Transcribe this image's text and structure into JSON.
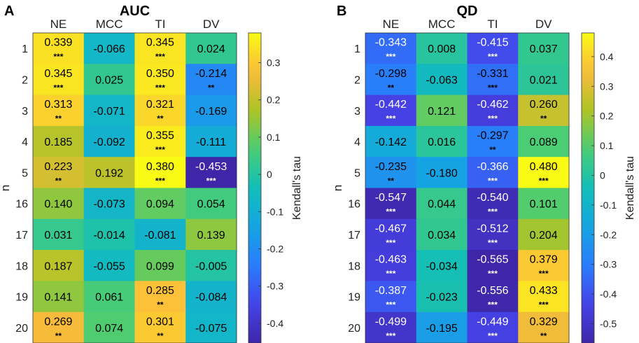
{
  "chart_data": [
    {
      "type": "heatmap",
      "panel_label": "A",
      "title": "AUC",
      "columns": [
        "NE",
        "MCC",
        "TI",
        "DV"
      ],
      "rows": [
        "1",
        "2",
        "3",
        "4",
        "5",
        "16",
        "17",
        "18",
        "19",
        "20"
      ],
      "ylabel": "n",
      "values": [
        [
          0.339,
          -0.066,
          0.345,
          0.024
        ],
        [
          0.345,
          0.025,
          0.35,
          -0.214
        ],
        [
          0.313,
          -0.071,
          0.321,
          -0.169
        ],
        [
          0.185,
          -0.092,
          0.355,
          -0.111
        ],
        [
          0.223,
          0.192,
          0.38,
          -0.453
        ],
        [
          0.14,
          -0.073,
          0.094,
          0.054
        ],
        [
          0.031,
          -0.014,
          -0.081,
          0.139
        ],
        [
          0.187,
          -0.055,
          0.099,
          -0.005
        ],
        [
          0.141,
          0.061,
          0.285,
          -0.084
        ],
        [
          0.269,
          0.074,
          0.301,
          -0.075
        ]
      ],
      "labels": [
        [
          "0.339",
          "-0.066",
          "0.345",
          "0.024"
        ],
        [
          "0.345",
          "0.025",
          "0.350",
          "-0.214"
        ],
        [
          "0.313",
          "-0.071",
          "0.321",
          "-0.169"
        ],
        [
          "0.185",
          "-0.092",
          "0.355",
          "-0.111"
        ],
        [
          "0.223",
          "0.192",
          "0.380",
          "-0.453"
        ],
        [
          "0.140",
          "-0.073",
          "0.094",
          "0.054"
        ],
        [
          "0.031",
          "-0.014",
          "-0.081",
          "0.139"
        ],
        [
          "0.187",
          "-0.055",
          "0.099",
          "-0.005"
        ],
        [
          "0.141",
          "0.061",
          "0.285",
          "-0.084"
        ],
        [
          "0.269",
          "0.074",
          "0.301",
          "-0.075"
        ]
      ],
      "significance": [
        [
          "***",
          "",
          "***",
          ""
        ],
        [
          "***",
          "",
          "***",
          "**"
        ],
        [
          "**",
          "",
          "**",
          ""
        ],
        [
          "",
          "",
          "***",
          ""
        ],
        [
          "**",
          "",
          "***",
          "***"
        ],
        [
          "",
          "",
          "",
          ""
        ],
        [
          "",
          "",
          "",
          ""
        ],
        [
          "",
          "",
          "",
          ""
        ],
        [
          "",
          "",
          "**",
          ""
        ],
        [
          "**",
          "",
          "**",
          ""
        ]
      ],
      "colorbar": {
        "label": "Kendall's tau",
        "range": [
          -0.453,
          0.38
        ],
        "ticks": [
          0.3,
          0.2,
          0.1,
          0,
          -0.1,
          -0.2,
          -0.3,
          -0.4
        ],
        "tick_labels": [
          "0.3",
          "0.2",
          "0.1",
          "0",
          "-0.1",
          "-0.2",
          "-0.3",
          "-0.4"
        ]
      }
    },
    {
      "type": "heatmap",
      "panel_label": "B",
      "title": "QD",
      "columns": [
        "NE",
        "MCC",
        "TI",
        "DV"
      ],
      "rows": [
        "1",
        "2",
        "3",
        "4",
        "5",
        "16",
        "17",
        "18",
        "19",
        "20"
      ],
      "ylabel": "n",
      "values": [
        [
          -0.343,
          0.008,
          -0.415,
          0.037
        ],
        [
          -0.298,
          -0.063,
          -0.331,
          0.021
        ],
        [
          -0.442,
          0.121,
          -0.462,
          0.26
        ],
        [
          -0.142,
          0.016,
          -0.297,
          0.089
        ],
        [
          -0.235,
          -0.18,
          -0.366,
          0.48
        ],
        [
          -0.547,
          0.044,
          -0.54,
          0.101
        ],
        [
          -0.467,
          0.034,
          -0.512,
          0.204
        ],
        [
          -0.463,
          -0.034,
          -0.565,
          0.379
        ],
        [
          -0.387,
          -0.023,
          -0.556,
          0.433
        ],
        [
          -0.499,
          -0.195,
          -0.449,
          0.329
        ]
      ],
      "labels": [
        [
          "-0.343",
          "0.008",
          "-0.415",
          "0.037"
        ],
        [
          "-0.298",
          "-0.063",
          "-0.331",
          "0.021"
        ],
        [
          "-0.442",
          "0.121",
          "-0.462",
          "0.260"
        ],
        [
          "-0.142",
          "0.016",
          "-0.297",
          "0.089"
        ],
        [
          "-0.235",
          "-0.180",
          "-0.366",
          "0.480"
        ],
        [
          "-0.547",
          "0.044",
          "-0.540",
          "0.101"
        ],
        [
          "-0.467",
          "0.034",
          "-0.512",
          "0.204"
        ],
        [
          "-0.463",
          "-0.034",
          "-0.565",
          "0.379"
        ],
        [
          "-0.387",
          "-0.023",
          "-0.556",
          "0.433"
        ],
        [
          "-0.499",
          "-0.195",
          "-0.449",
          "0.329"
        ]
      ],
      "significance": [
        [
          "***",
          "",
          "***",
          ""
        ],
        [
          "**",
          "",
          "***",
          ""
        ],
        [
          "***",
          "",
          "***",
          "**"
        ],
        [
          "",
          "",
          "**",
          ""
        ],
        [
          "**",
          "",
          "***",
          "***"
        ],
        [
          "***",
          "",
          "***",
          ""
        ],
        [
          "***",
          "",
          "***",
          ""
        ],
        [
          "***",
          "",
          "***",
          "***"
        ],
        [
          "***",
          "",
          "***",
          "***"
        ],
        [
          "***",
          "",
          "***",
          "**"
        ]
      ],
      "colorbar": {
        "label": "Kendall's tau",
        "range": [
          -0.565,
          0.48
        ],
        "ticks": [
          0.4,
          0.3,
          0.2,
          0.1,
          0,
          -0.1,
          -0.2,
          -0.3,
          -0.4,
          -0.5
        ],
        "tick_labels": [
          "0.4",
          "0.3",
          "0.2",
          "0.1",
          "0",
          "-0.1",
          "-0.2",
          "-0.3",
          "-0.4",
          "-0.5"
        ]
      }
    }
  ]
}
